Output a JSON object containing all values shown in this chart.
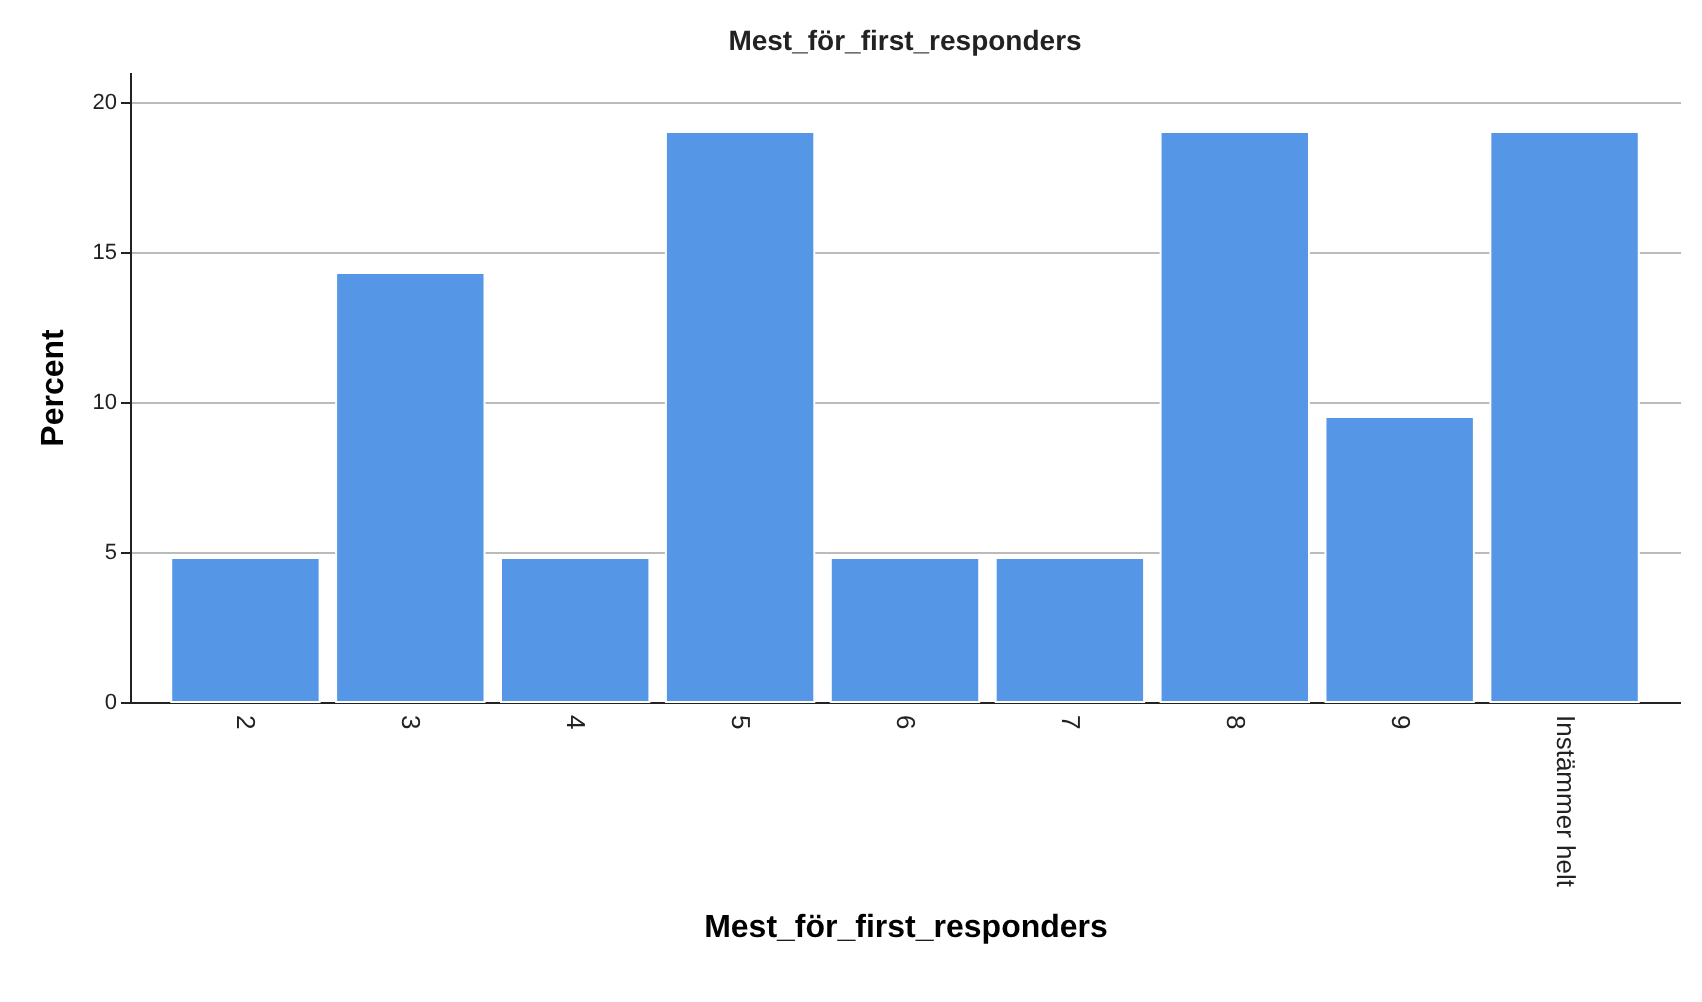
{
  "chart_data": {
    "type": "bar",
    "title": "Mest_för_first_responders",
    "xlabel": "Mest_för_first_responders",
    "ylabel": "Percent",
    "categories": [
      "2",
      "3",
      "4",
      "5",
      "6",
      "7",
      "8",
      "9",
      "Instämmer helt"
    ],
    "values": [
      4.8,
      14.3,
      4.8,
      19.0,
      4.8,
      4.8,
      19.0,
      9.5,
      19.0
    ],
    "color": "#5596e6",
    "ylim": [
      0,
      21
    ],
    "yticks": [
      0,
      5,
      10,
      15,
      20
    ],
    "grid": "y"
  }
}
